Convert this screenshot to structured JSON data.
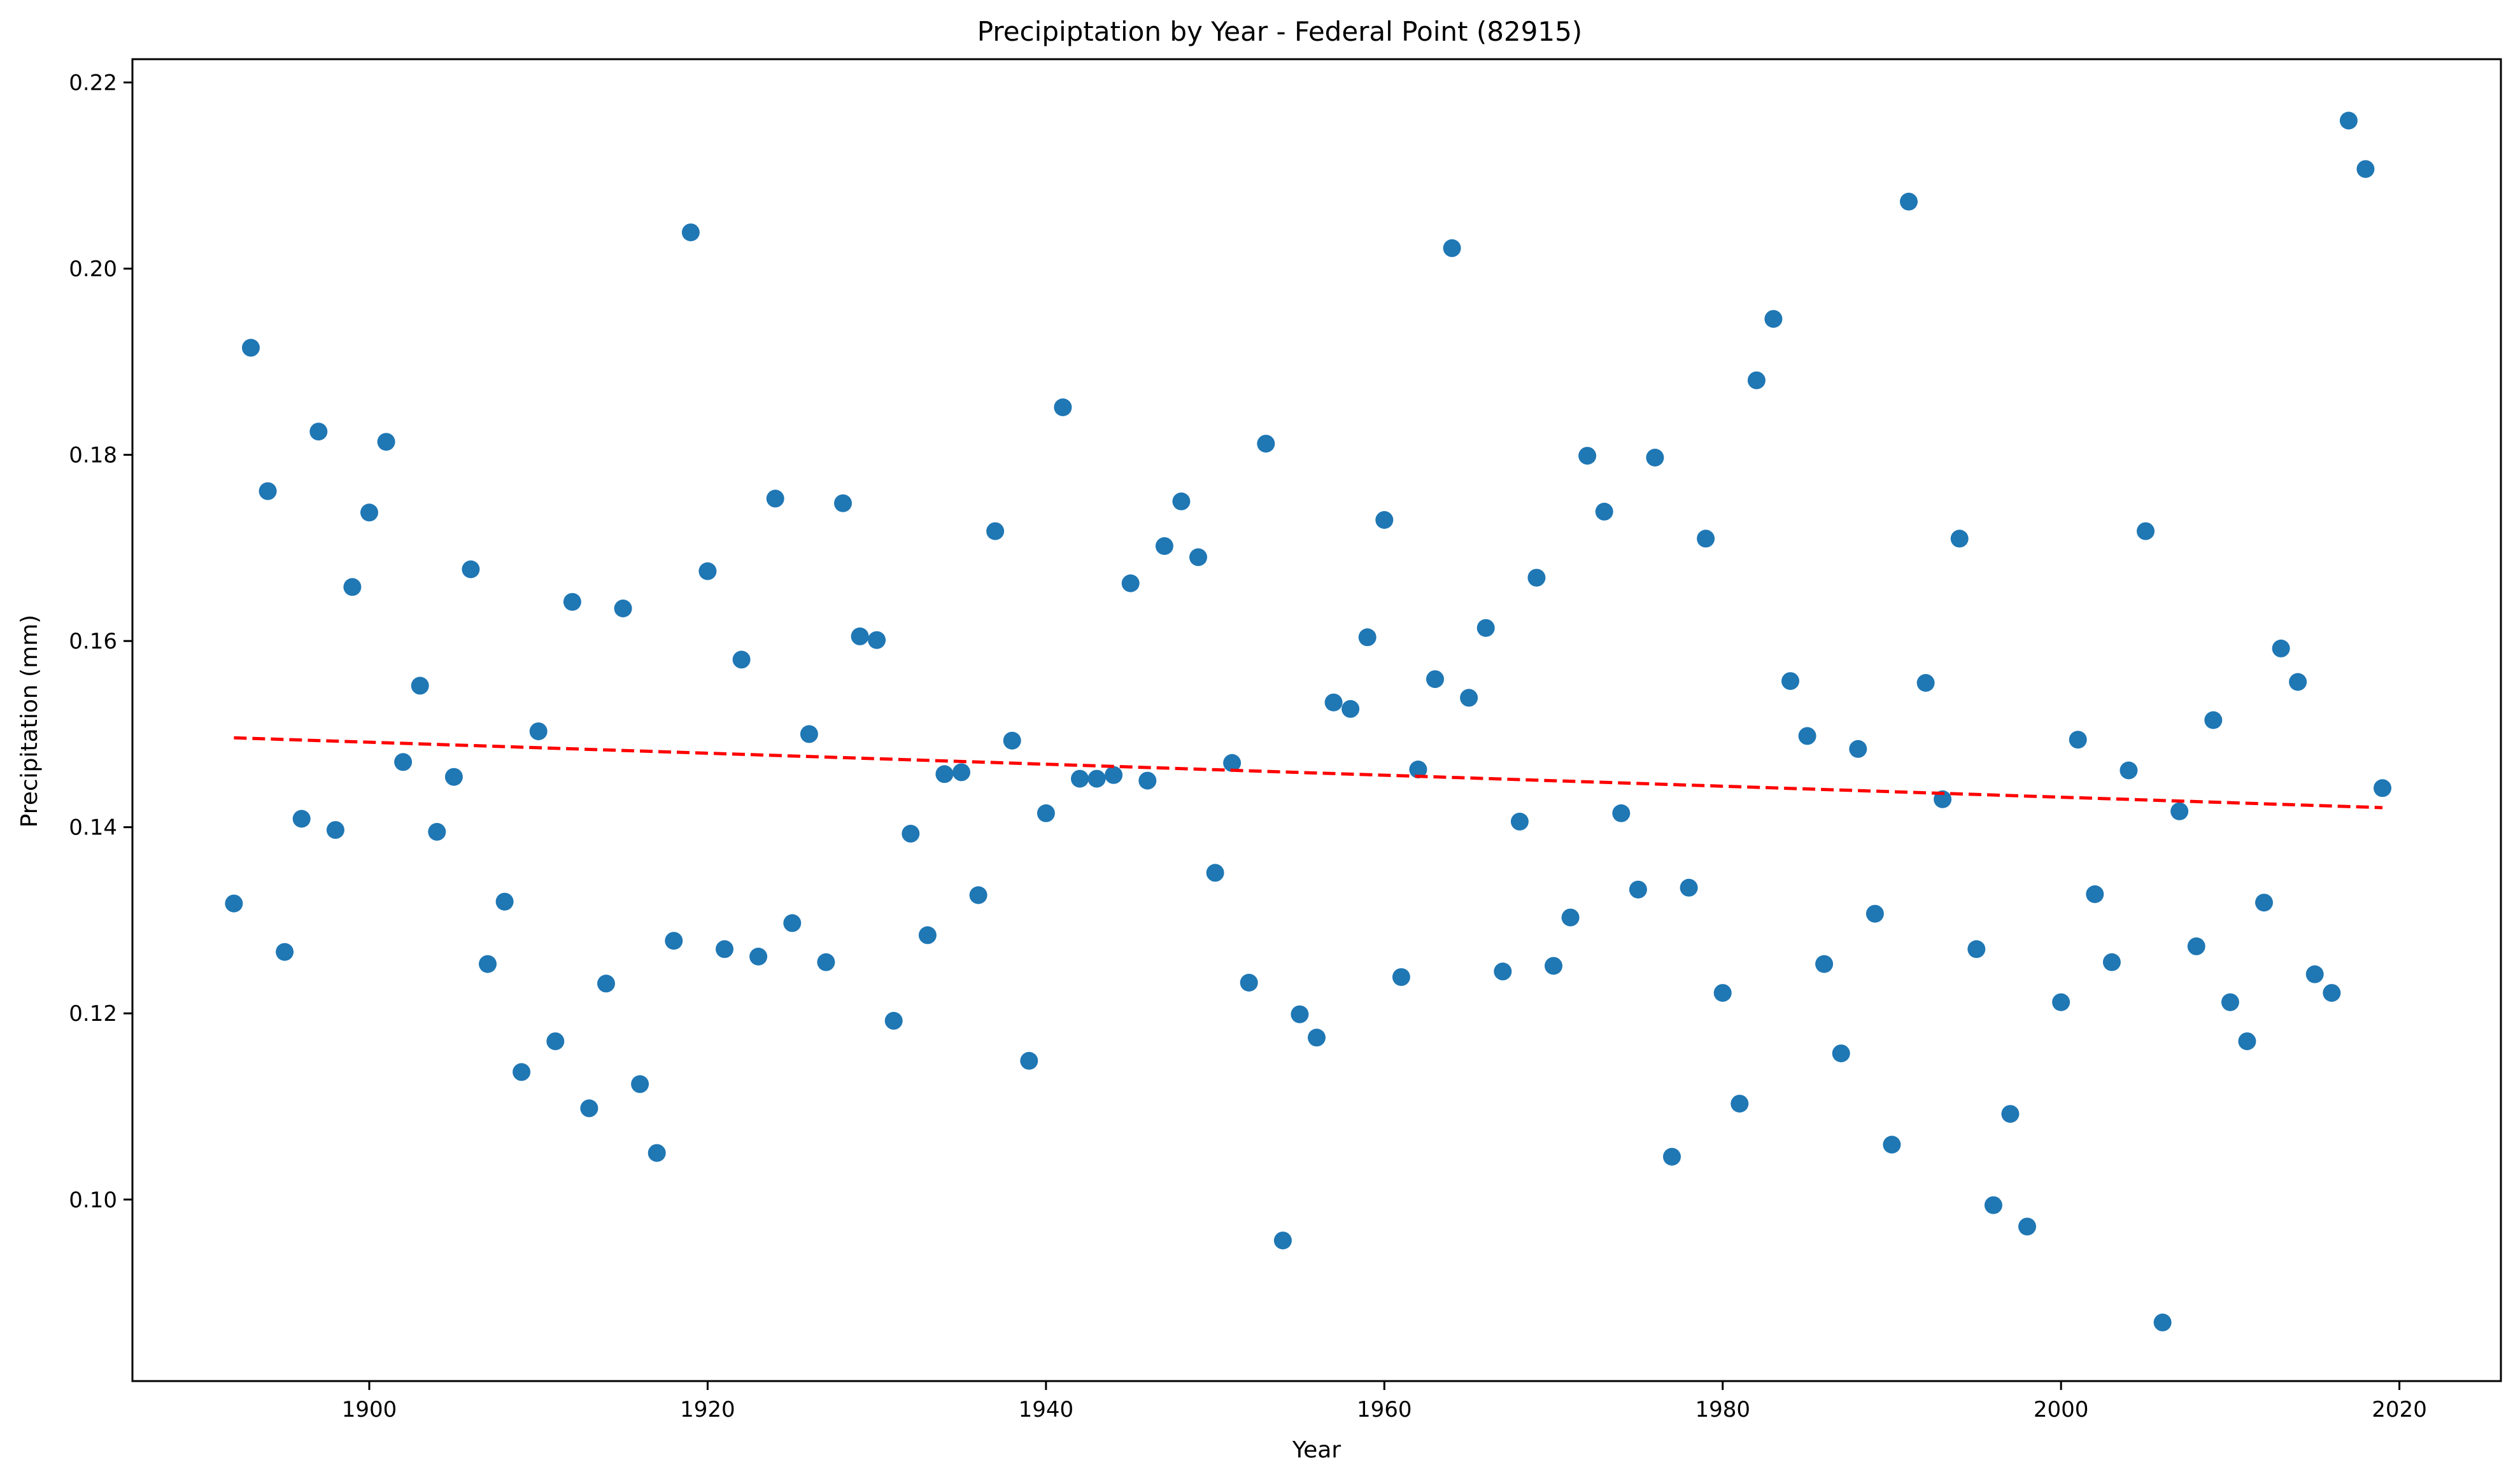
{
  "chart_data": {
    "type": "scatter",
    "title": "Precipiptation by Year - Federal Point (82915)",
    "xlabel": "Year",
    "ylabel": "Precipitation (mm)",
    "xlim": [
      1886,
      2026
    ],
    "ylim": [
      0.0805,
      0.2225
    ],
    "xticks": [
      1900,
      1920,
      1940,
      1960,
      1980,
      2000,
      2020
    ],
    "yticks": [
      0.1,
      0.12,
      0.14,
      0.16,
      0.18,
      0.2,
      0.22
    ],
    "xtick_labels": [
      "1900",
      "1920",
      "1940",
      "1960",
      "1980",
      "2000",
      "2020"
    ],
    "ytick_labels": [
      "0.10",
      "0.12",
      "0.14",
      "0.16",
      "0.18",
      "0.20",
      "0.22"
    ],
    "grid": false,
    "marker_color": "#1f77b4",
    "trend_color": "#ff0000",
    "series": [
      {
        "x": [
          1892,
          1893,
          1894,
          1895,
          1896,
          1897,
          1898,
          1899,
          1900,
          1901,
          1902,
          1903,
          1904,
          1905,
          1906,
          1907,
          1908,
          1909,
          1910,
          1911,
          1912,
          1913,
          1914,
          1915,
          1916,
          1917,
          1918,
          1919,
          1920,
          1921,
          1922,
          1923,
          1924,
          1925,
          1926,
          1927,
          1928,
          1929,
          1930,
          1931,
          1932,
          1933,
          1934,
          1935,
          1936,
          1937,
          1938,
          1939,
          1940,
          1941,
          1942,
          1943,
          1944,
          1945,
          1946,
          1947,
          1948,
          1949,
          1950,
          1951,
          1952,
          1953,
          1954,
          1955,
          1956,
          1957,
          1958,
          1959,
          1960,
          1961,
          1962,
          1963,
          1964,
          1965,
          1966,
          1967,
          1968,
          1969,
          1970,
          1971,
          1972,
          1973,
          1974,
          1975,
          1976,
          1977,
          1978,
          1979,
          1980,
          1981,
          1982,
          1983,
          1984,
          1985,
          1986,
          1987,
          1988,
          1989,
          1990,
          1991,
          1992,
          1993,
          1994,
          1995,
          1996,
          1997,
          1998,
          2000,
          2001,
          2002,
          2003,
          2004,
          2005,
          2006,
          2007,
          2008,
          2009,
          2010,
          2011,
          2012,
          2013,
          2014,
          2015,
          2016,
          2017,
          2018,
          2019
        ],
        "y": [
          0.1318,
          0.1915,
          0.1761,
          0.1266,
          0.1409,
          0.1825,
          0.1397,
          0.1658,
          0.1738,
          0.1814,
          0.147,
          0.1552,
          0.1395,
          0.1454,
          0.1677,
          0.1253,
          0.132,
          0.1137,
          0.1503,
          0.117,
          0.1642,
          0.1098,
          0.1232,
          0.1635,
          0.1124,
          0.105,
          0.1278,
          0.2039,
          0.1675,
          0.1269,
          0.158,
          0.1261,
          0.1753,
          0.1297,
          0.15,
          0.1255,
          0.1748,
          0.1605,
          0.1601,
          0.1192,
          0.1393,
          0.1284,
          0.1457,
          0.1459,
          0.1327,
          0.1718,
          0.1493,
          0.1149,
          0.1415,
          0.1851,
          0.1452,
          0.1452,
          0.1456,
          0.1662,
          0.145,
          0.1702,
          0.175,
          0.169,
          0.1351,
          0.1469,
          0.1233,
          0.1812,
          0.0956,
          0.1199,
          0.1174,
          0.1534,
          0.1527,
          0.1604,
          0.173,
          0.1239,
          0.1462,
          0.1559,
          0.2022,
          0.1539,
          0.1614,
          0.1245,
          0.1406,
          0.1668,
          0.1251,
          0.1303,
          0.1799,
          0.1739,
          0.1415,
          0.1333,
          0.1797,
          0.1046,
          0.1335,
          0.171,
          0.1222,
          0.1103,
          0.188,
          0.1946,
          0.1557,
          0.1498,
          0.1253,
          0.1157,
          0.1484,
          0.1307,
          0.1059,
          0.2072,
          0.1555,
          0.143,
          0.171,
          0.1269,
          0.0994,
          0.1092,
          0.0971,
          0.1212,
          0.1494,
          0.1328,
          0.1255,
          0.1461,
          0.1718,
          0.0868,
          0.1417,
          0.1272,
          0.1515,
          0.1212,
          0.117,
          0.1319,
          0.1592,
          0.1556,
          0.1242,
          0.1222,
          0.2159,
          0.2107,
          0.1442
        ]
      }
    ],
    "trendline": {
      "x": [
        1892,
        2019
      ],
      "y": [
        0.1496,
        0.1421
      ]
    }
  }
}
